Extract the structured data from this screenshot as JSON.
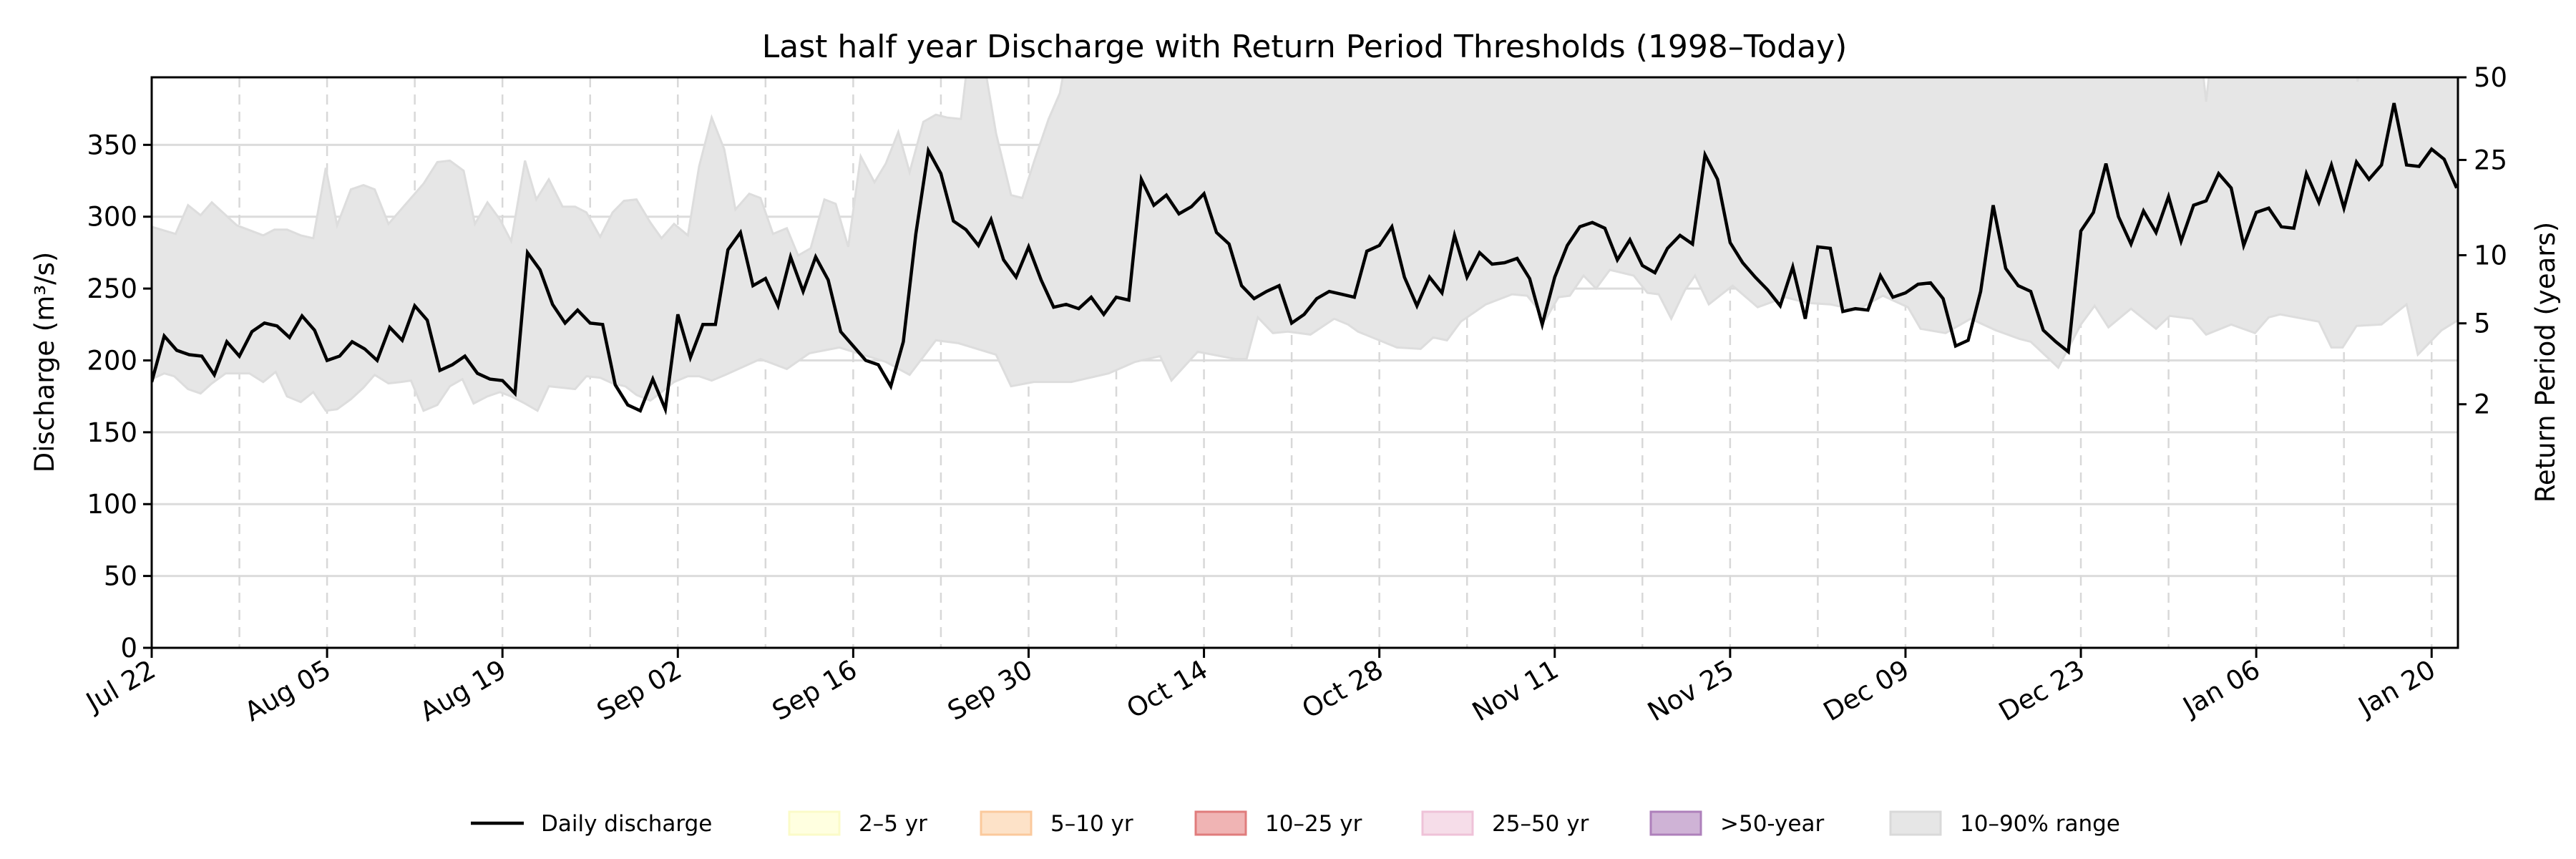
{
  "chart_data": {
    "type": "line",
    "title": "Last half year Discharge with Return Period Thresholds (1998–Today)",
    "xlabel": "",
    "ylabel": "Discharge (m³/s)",
    "y2label": "Return Period (years)",
    "ylim": [
      0,
      397
    ],
    "xlim_days": [
      0,
      184.1
    ],
    "x_start": "Jul 22",
    "x_unit": "days since Jul 22",
    "x_ticks": [
      {
        "day": 0,
        "label": "Jul 22"
      },
      {
        "day": 14,
        "label": "Aug 05"
      },
      {
        "day": 28,
        "label": "Aug 19"
      },
      {
        "day": 42,
        "label": "Sep 02"
      },
      {
        "day": 56,
        "label": "Sep 16"
      },
      {
        "day": 70,
        "label": "Sep 30"
      },
      {
        "day": 84,
        "label": "Oct 14"
      },
      {
        "day": 98,
        "label": "Oct 28"
      },
      {
        "day": 112,
        "label": "Nov 11"
      },
      {
        "day": 126,
        "label": "Nov 25"
      },
      {
        "day": 140,
        "label": "Dec 09"
      },
      {
        "day": 154,
        "label": "Dec 23"
      },
      {
        "day": 168,
        "label": "Jan 06"
      },
      {
        "day": 182,
        "label": "Jan 20"
      }
    ],
    "y_ticks": [
      0,
      50,
      100,
      150,
      200,
      250,
      300,
      350
    ],
    "y2_ticks": [
      {
        "label": "2",
        "discharge": 169.5
      },
      {
        "label": "5",
        "discharge": 225.8
      },
      {
        "label": "10",
        "discharge": 273.2
      },
      {
        "label": "25",
        "discharge": 339.5
      },
      {
        "label": "50",
        "discharge": 397
      }
    ],
    "grid": "horizontal solid every 50; vertical dashed weekly",
    "legend_position": "bottom-center",
    "series": [
      {
        "name": "Daily discharge",
        "color": "#000000",
        "values": [
          185,
          217,
          207,
          204,
          203,
          190,
          213,
          203,
          220,
          226,
          224,
          216,
          231,
          221,
          200,
          203,
          213,
          208,
          200,
          223,
          214,
          238,
          228,
          193,
          197,
          203,
          191,
          187,
          186,
          177,
          275,
          263,
          239,
          226,
          235,
          226,
          225,
          183,
          169,
          165,
          187,
          166,
          232,
          202,
          225,
          225,
          277,
          289,
          252,
          257,
          238,
          272,
          248,
          272,
          256,
          220,
          210,
          200,
          197,
          182,
          213,
          288,
          346,
          330,
          297,
          291,
          280,
          298,
          270,
          258,
          279,
          256,
          237,
          239,
          236,
          244,
          232,
          244,
          242,
          326,
          308,
          315,
          302,
          307,
          316,
          289,
          281,
          252,
          243,
          248,
          252,
          226,
          232,
          243,
          248,
          246,
          244,
          276,
          280,
          293,
          258,
          238,
          258,
          247,
          287,
          258,
          275,
          267,
          268,
          271,
          257,
          225,
          258,
          280,
          293,
          296,
          292,
          270,
          284,
          266,
          261,
          278,
          287,
          281,
          343,
          326,
          282,
          268,
          258,
          249,
          238,
          265,
          229,
          279,
          278,
          234,
          236,
          235,
          259,
          244,
          247,
          253,
          254,
          243,
          210,
          214,
          248,
          308,
          264,
          252,
          248,
          221,
          213,
          206,
          290,
          303,
          337,
          300,
          281,
          304,
          289,
          314,
          283,
          308,
          311,
          330,
          320,
          280,
          303,
          306,
          293,
          292,
          330,
          310,
          336,
          306,
          338,
          326,
          336,
          379,
          336,
          335,
          347,
          340,
          320
        ]
      }
    ],
    "range_band": {
      "name": "10–90% range",
      "color": "#e6e6e6",
      "upper": [
        [
          0,
          293
        ],
        [
          1.9,
          288
        ],
        [
          2.9,
          308
        ],
        [
          3.9,
          301
        ],
        [
          4.8,
          310
        ],
        [
          6.8,
          294
        ],
        [
          8.9,
          287
        ],
        [
          9.8,
          291
        ],
        [
          10.8,
          291
        ],
        [
          11.9,
          287
        ],
        [
          12.9,
          285
        ],
        [
          13.9,
          334
        ],
        [
          14.8,
          294
        ],
        [
          15.9,
          319
        ],
        [
          16.9,
          322
        ],
        [
          17.8,
          319
        ],
        [
          18.9,
          295
        ],
        [
          19.9,
          305
        ],
        [
          21.7,
          323
        ],
        [
          22.8,
          338
        ],
        [
          23.8,
          339
        ],
        [
          24.9,
          332
        ],
        [
          25.8,
          295
        ],
        [
          26.8,
          310
        ],
        [
          27.8,
          298
        ],
        [
          28.7,
          283
        ],
        [
          29.8,
          339
        ],
        [
          30.7,
          312
        ],
        [
          31.7,
          326
        ],
        [
          32.8,
          307
        ],
        [
          33.8,
          307
        ],
        [
          34.7,
          303
        ],
        [
          35.8,
          286
        ],
        [
          36.8,
          303
        ],
        [
          37.7,
          311
        ],
        [
          38.7,
          312
        ],
        [
          39.8,
          296
        ],
        [
          40.7,
          285
        ],
        [
          41.7,
          295
        ],
        [
          42.8,
          287
        ],
        [
          43.7,
          335
        ],
        [
          44.7,
          369
        ],
        [
          45.7,
          347
        ],
        [
          46.6,
          305
        ],
        [
          47.7,
          316
        ],
        [
          48.6,
          313
        ],
        [
          49.6,
          288
        ],
        [
          50.7,
          292
        ],
        [
          51.6,
          273
        ],
        [
          52.6,
          278
        ],
        [
          53.7,
          312
        ],
        [
          54.6,
          309
        ],
        [
          55.6,
          279
        ],
        [
          56.6,
          342
        ],
        [
          57.7,
          324
        ],
        [
          58.6,
          337
        ],
        [
          59.6,
          359
        ],
        [
          60.5,
          331
        ],
        [
          61.6,
          366
        ],
        [
          62.6,
          371
        ],
        [
          63.5,
          369
        ],
        [
          64.6,
          368
        ],
        [
          65.3,
          420
        ],
        [
          66.2,
          420
        ],
        [
          67.4,
          358
        ],
        [
          68.6,
          315
        ],
        [
          69.5,
          313
        ],
        [
          70.5,
          340
        ],
        [
          71.6,
          368
        ],
        [
          72.5,
          386
        ],
        [
          73.2,
          420
        ],
        [
          163.5,
          420
        ],
        [
          164,
          380
        ],
        [
          164.5,
          420
        ],
        [
          175.8,
          420
        ],
        [
          176.1,
          394
        ],
        [
          176.4,
          420
        ],
        [
          184.1,
          420
        ]
      ],
      "lower": [
        [
          0,
          187
        ],
        [
          1,
          191
        ],
        [
          1.8,
          189
        ],
        [
          2.9,
          180
        ],
        [
          3.9,
          177
        ],
        [
          4.8,
          184
        ],
        [
          5.9,
          191
        ],
        [
          6.8,
          191
        ],
        [
          7.8,
          191
        ],
        [
          8.9,
          185
        ],
        [
          9.9,
          192
        ],
        [
          10.8,
          175
        ],
        [
          11.9,
          171
        ],
        [
          12.9,
          178
        ],
        [
          13.9,
          165
        ],
        [
          14.8,
          166
        ],
        [
          15.9,
          173
        ],
        [
          16.9,
          181
        ],
        [
          17.8,
          190
        ],
        [
          18.9,
          184
        ],
        [
          19.9,
          185
        ],
        [
          20.7,
          186
        ],
        [
          21.7,
          165
        ],
        [
          22.8,
          169
        ],
        [
          23.8,
          182
        ],
        [
          24.8,
          187
        ],
        [
          25.7,
          170
        ],
        [
          26.8,
          175
        ],
        [
          27.8,
          178
        ],
        [
          28.7,
          175
        ],
        [
          29.8,
          170
        ],
        [
          30.8,
          165
        ],
        [
          31.7,
          182
        ],
        [
          32.8,
          181
        ],
        [
          33.8,
          180
        ],
        [
          34.7,
          189
        ],
        [
          35.8,
          188
        ],
        [
          36.8,
          184
        ],
        [
          37.8,
          182
        ],
        [
          38.7,
          176
        ],
        [
          39.8,
          172
        ],
        [
          40.7,
          178
        ],
        [
          41.7,
          185
        ],
        [
          42.8,
          189
        ],
        [
          43.7,
          189
        ],
        [
          44.7,
          186
        ],
        [
          45.8,
          190
        ],
        [
          48.6,
          201
        ],
        [
          50.7,
          194
        ],
        [
          52.5,
          205
        ],
        [
          54.9,
          209
        ],
        [
          58.6,
          199
        ],
        [
          60.5,
          190
        ],
        [
          62.6,
          214
        ],
        [
          64.4,
          212
        ],
        [
          67.4,
          204
        ],
        [
          68.6,
          182
        ],
        [
          70.4,
          185
        ],
        [
          73.4,
          185
        ],
        [
          76.4,
          191
        ],
        [
          78.5,
          199
        ],
        [
          80.5,
          203
        ],
        [
          81.4,
          186
        ],
        [
          83.5,
          206
        ],
        [
          86.5,
          201
        ],
        [
          87.4,
          201
        ],
        [
          88.3,
          230
        ],
        [
          89.5,
          219
        ],
        [
          90.7,
          220
        ],
        [
          92.5,
          218
        ],
        [
          94.4,
          229
        ],
        [
          95.5,
          225
        ],
        [
          96.3,
          220
        ],
        [
          99.4,
          209
        ],
        [
          101.3,
          208
        ],
        [
          102.3,
          216
        ],
        [
          103.4,
          214
        ],
        [
          104.5,
          227
        ],
        [
          106.5,
          239
        ],
        [
          108.6,
          246
        ],
        [
          109.8,
          245
        ],
        [
          111.3,
          229
        ],
        [
          112.3,
          244
        ],
        [
          113.2,
          245
        ],
        [
          114.3,
          259
        ],
        [
          115.3,
          250
        ],
        [
          116.4,
          263
        ],
        [
          118.3,
          259
        ],
        [
          119.4,
          247
        ],
        [
          120.3,
          246
        ],
        [
          121.3,
          229
        ],
        [
          122.4,
          249
        ],
        [
          123.2,
          259
        ],
        [
          124.3,
          239
        ],
        [
          126.2,
          252
        ],
        [
          128.2,
          237
        ],
        [
          130.4,
          244
        ],
        [
          132.2,
          240
        ],
        [
          134,
          239
        ],
        [
          136.1,
          235
        ],
        [
          138.2,
          245
        ],
        [
          140.2,
          237
        ],
        [
          141.2,
          222
        ],
        [
          143.2,
          219
        ],
        [
          145.2,
          229
        ],
        [
          147.2,
          221
        ],
        [
          149.1,
          215
        ],
        [
          150,
          213
        ],
        [
          152.2,
          195
        ],
        [
          154,
          225
        ],
        [
          155.1,
          238
        ],
        [
          156.2,
          223
        ],
        [
          158,
          236
        ],
        [
          160,
          222
        ],
        [
          161.1,
          231
        ],
        [
          162.9,
          229
        ],
        [
          164,
          218
        ],
        [
          166,
          225
        ],
        [
          167.9,
          219
        ],
        [
          169,
          230
        ],
        [
          169.9,
          232
        ],
        [
          173,
          227
        ],
        [
          174,
          209
        ],
        [
          174.9,
          209
        ],
        [
          176,
          224
        ],
        [
          178,
          225
        ],
        [
          180,
          239
        ],
        [
          180.9,
          204
        ],
        [
          182.8,
          221
        ],
        [
          184.1,
          228
        ]
      ]
    },
    "legend": [
      {
        "label": "Daily discharge",
        "kind": "line",
        "color": "#000000"
      },
      {
        "label": "2–5 yr",
        "kind": "patch",
        "color": "#ffffe0",
        "edge": "#fbfbc8"
      },
      {
        "label": "5–10 yr",
        "kind": "patch",
        "color": "#fde2c8",
        "edge": "#fbc99c"
      },
      {
        "label": "10–25 yr",
        "kind": "patch",
        "color": "#f0b4b4",
        "edge": "#e07c7c"
      },
      {
        "label": "25–50 yr",
        "kind": "patch",
        "color": "#f6dde9",
        "edge": "#efc2d8"
      },
      {
        "label": ">50-year",
        "kind": "patch",
        "color": "#cfb3d6",
        "edge": "#ae80bb"
      },
      {
        "label": "10–90% range",
        "kind": "patch",
        "color": "#e6e6e6",
        "edge": "#d9d9d9"
      }
    ]
  }
}
